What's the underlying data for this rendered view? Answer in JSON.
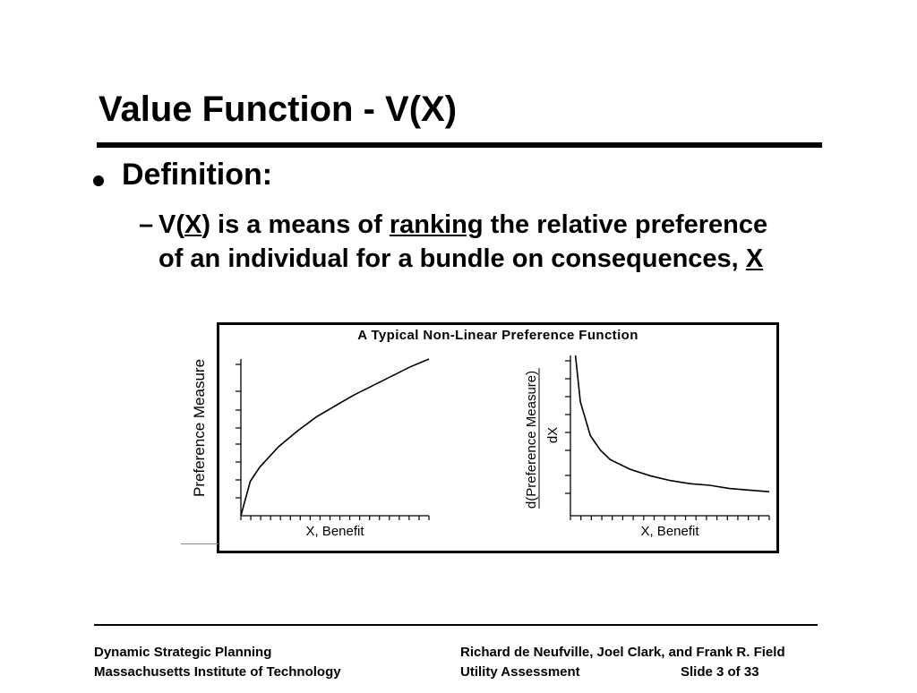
{
  "slide": {
    "title": "Value Function - V(X)",
    "bullet": "Definition:",
    "sub_dash": "–",
    "sub_parts": {
      "p1": "V(",
      "p2": "X",
      "p3": ") is a means of ",
      "p4": "ranking",
      "p5": " the relative preference of an individual for a bundle on consequences, ",
      "p6": "X"
    }
  },
  "figure": {
    "title": "A Typical Non-Linear Preference Function",
    "left_ylabel": "Preference Measure",
    "right_ylabel_numerator": "d(Preference Measure)",
    "right_ylabel_denominator": "dX"
  },
  "chart_data": [
    {
      "type": "line",
      "title": "A Typical Non-Linear Preference Function",
      "xlabel": "X, Benefit",
      "ylabel": "Preference Measure",
      "series": [
        {
          "x": [
            0,
            0.5,
            1,
            2,
            3,
            4,
            5,
            6,
            7,
            8,
            9,
            10
          ],
          "y": [
            0,
            2.2,
            3.1,
            4.4,
            5.4,
            6.3,
            7.0,
            7.7,
            8.3,
            8.9,
            9.5,
            10.0
          ]
        }
      ],
      "xlim": [
        0,
        10
      ],
      "ylim": [
        0,
        10
      ]
    },
    {
      "type": "line",
      "xlabel": "X, Benefit",
      "ylabel": "d(Preference Measure) / dX",
      "series": [
        {
          "x": [
            0.25,
            0.5,
            1,
            1.5,
            2,
            3,
            4,
            5,
            6,
            7,
            8,
            9,
            10
          ],
          "y": [
            10,
            7.1,
            5.0,
            4.1,
            3.5,
            2.9,
            2.5,
            2.2,
            2.0,
            1.9,
            1.7,
            1.6,
            1.5
          ]
        }
      ],
      "xlim": [
        0,
        10
      ],
      "ylim": [
        0,
        10
      ]
    }
  ],
  "footer": {
    "left_line1": "Dynamic Strategic Planning",
    "left_line2": "Massachusetts Institute of Technology",
    "right_line1": "Richard de Neufville, Joel Clark, and Frank R. Field",
    "right_line2": "Utility Assessment",
    "slide_num": "Slide 3 of 33"
  }
}
